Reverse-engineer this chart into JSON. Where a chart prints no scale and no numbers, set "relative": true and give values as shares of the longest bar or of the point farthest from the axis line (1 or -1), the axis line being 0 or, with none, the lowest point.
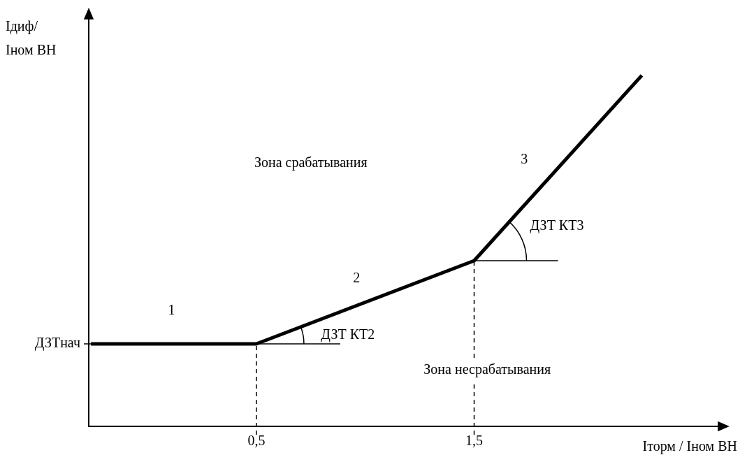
{
  "chart_data": {
    "type": "line",
    "relative": true,
    "xlabel": "Iторм / Iном ВН",
    "ylabel": "Iдиф/\nIном ВН",
    "x": [
      -0.26,
      0.5,
      1.5,
      2.27
    ],
    "series": [
      {
        "color": "#000000",
        "values": [
          0.235,
          0.235,
          0.472,
          1
        ]
      }
    ],
    "xlim": [
      -0.27,
      2.66
    ],
    "xticks": [
      {
        "value": 0.5,
        "label": "0,5"
      },
      {
        "value": 1.5,
        "label": "1,5"
      }
    ],
    "ref_lines": [
      {
        "axis": "x",
        "value": 0.5,
        "line_style": "dashed"
      },
      {
        "axis": "x",
        "value": 1.5,
        "line_style": "dashed"
      }
    ],
    "annotations": [
      "ДЗТнач",
      "1",
      "2",
      "3",
      "Зона срабатывания",
      "Зона несрабатывания",
      "ДЗТ КТ2",
      "ДЗТ КТ3"
    ],
    "grid": false,
    "legend": false,
    "marker": "none",
    "line_style": "solid"
  }
}
